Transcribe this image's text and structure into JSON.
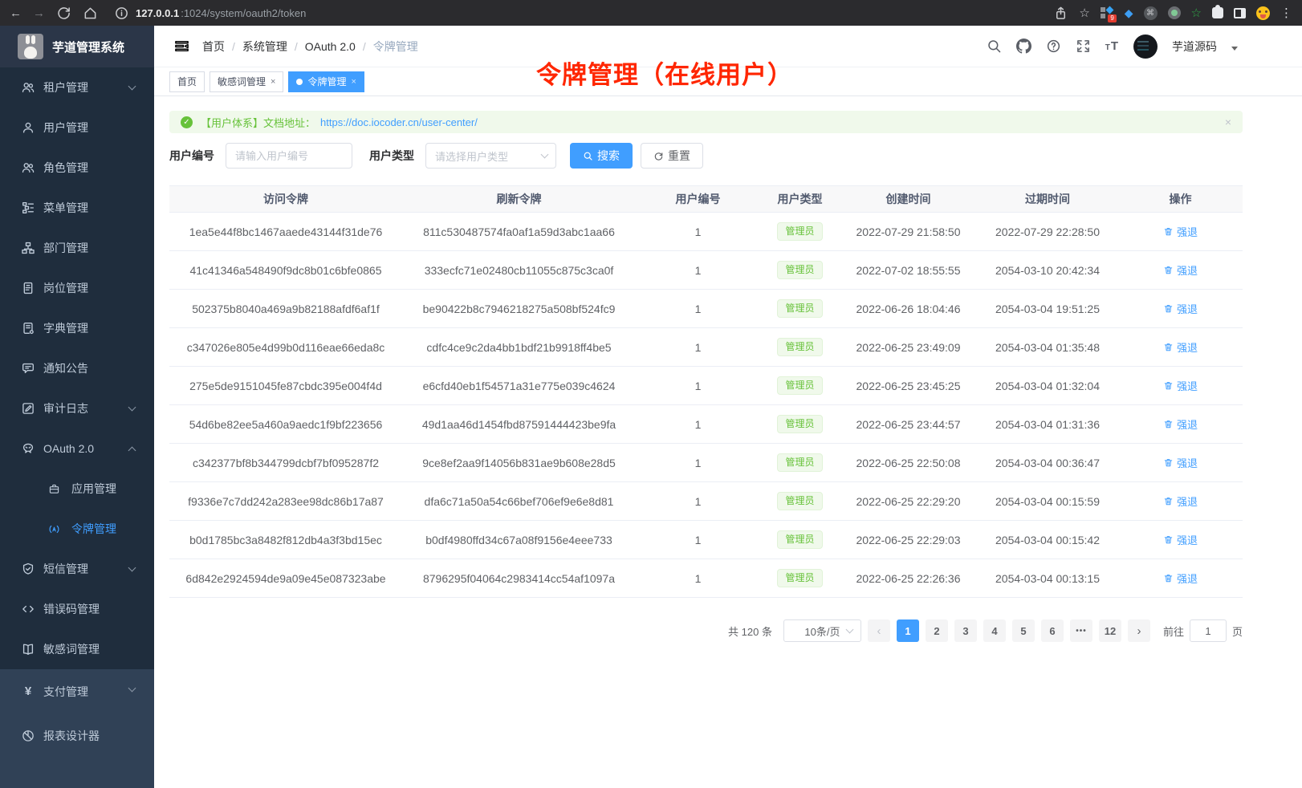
{
  "colors": {
    "accent": "#409eff",
    "success": "#67c23a",
    "sidebar_bg": "#304156",
    "submenu_bg": "#1f2d3d",
    "annotation_red": "#ff2600"
  },
  "browser": {
    "url_host": "127.0.0.1",
    "url_rest": ":1024/system/oauth2/token",
    "extensions_badge": "9"
  },
  "app": {
    "logo_title": "芋道管理系统",
    "annotation_text": "令牌管理（在线用户）"
  },
  "header": {
    "breadcrumb": [
      "首页",
      "系统管理",
      "OAuth 2.0",
      "令牌管理"
    ],
    "user_name": "芋道源码"
  },
  "tabs": [
    {
      "label": "首页",
      "closable": false,
      "active": false
    },
    {
      "label": "敏感词管理",
      "closable": true,
      "active": false
    },
    {
      "label": "令牌管理",
      "closable": true,
      "active": true
    }
  ],
  "sidebar": {
    "submenu_items": [
      {
        "label": "租户管理",
        "icon": "users",
        "level": 1,
        "chevron": "down"
      },
      {
        "label": "用户管理",
        "icon": "user",
        "level": 1
      },
      {
        "label": "角色管理",
        "icon": "users",
        "level": 1
      },
      {
        "label": "菜单管理",
        "icon": "tree",
        "level": 1
      },
      {
        "label": "部门管理",
        "icon": "org",
        "level": 1
      },
      {
        "label": "岗位管理",
        "icon": "badge",
        "level": 1
      },
      {
        "label": "字典管理",
        "icon": "dict",
        "level": 1
      },
      {
        "label": "通知公告",
        "icon": "message",
        "level": 1
      },
      {
        "label": "审计日志",
        "icon": "log",
        "level": 1,
        "chevron": "down"
      },
      {
        "label": "OAuth 2.0",
        "icon": "oauth",
        "level": 1,
        "chevron": "up"
      },
      {
        "label": "应用管理",
        "icon": "app",
        "level": 2
      },
      {
        "label": "令牌管理",
        "icon": "token",
        "level": 2,
        "active": true
      },
      {
        "label": "短信管理",
        "icon": "sms",
        "level": 1,
        "chevron": "down"
      },
      {
        "label": "错误码管理",
        "icon": "code",
        "level": 1
      },
      {
        "label": "敏感词管理",
        "icon": "book",
        "level": 1
      }
    ],
    "root_items": [
      {
        "label": "支付管理",
        "icon": "pay",
        "level": 1,
        "chevron": "down"
      },
      {
        "label": "报表设计器",
        "icon": "report",
        "level": 1
      }
    ]
  },
  "alert": {
    "text": "【用户体系】文档地址：",
    "link": "https://doc.iocoder.cn/user-center/"
  },
  "filters": {
    "user_id_label": "用户编号",
    "user_id_placeholder": "请输入用户编号",
    "user_type_label": "用户类型",
    "user_type_placeholder": "请选择用户类型",
    "search_label": "搜索",
    "reset_label": "重置"
  },
  "table": {
    "columns": [
      "访问令牌",
      "刷新令牌",
      "用户编号",
      "用户类型",
      "创建时间",
      "过期时间",
      "操作"
    ],
    "action_label": "强退",
    "rows": [
      {
        "access": "1ea5e44f8bc1467aaede43144f31de76",
        "refresh": "811c530487574fa0af1a59d3abc1aa66",
        "user_id": "1",
        "user_type": "管理员",
        "created": "2022-07-29 21:58:50",
        "expires": "2022-07-29 22:28:50"
      },
      {
        "access": "41c41346a548490f9dc8b01c6bfe0865",
        "refresh": "333ecfc71e02480cb11055c875c3ca0f",
        "user_id": "1",
        "user_type": "管理员",
        "created": "2022-07-02 18:55:55",
        "expires": "2054-03-10 20:42:34"
      },
      {
        "access": "502375b8040a469a9b82188afdf6af1f",
        "refresh": "be90422b8c7946218275a508bf524fc9",
        "user_id": "1",
        "user_type": "管理员",
        "created": "2022-06-26 18:04:46",
        "expires": "2054-03-04 19:51:25"
      },
      {
        "access": "c347026e805e4d99b0d116eae66eda8c",
        "refresh": "cdfc4ce9c2da4bb1bdf21b9918ff4be5",
        "user_id": "1",
        "user_type": "管理员",
        "created": "2022-06-25 23:49:09",
        "expires": "2054-03-04 01:35:48"
      },
      {
        "access": "275e5de9151045fe87cbdc395e004f4d",
        "refresh": "e6cfd40eb1f54571a31e775e039c4624",
        "user_id": "1",
        "user_type": "管理员",
        "created": "2022-06-25 23:45:25",
        "expires": "2054-03-04 01:32:04"
      },
      {
        "access": "54d6be82ee5a460a9aedc1f9bf223656",
        "refresh": "49d1aa46d1454fbd87591444423be9fa",
        "user_id": "1",
        "user_type": "管理员",
        "created": "2022-06-25 23:44:57",
        "expires": "2054-03-04 01:31:36"
      },
      {
        "access": "c342377bf8b344799dcbf7bf095287f2",
        "refresh": "9ce8ef2aa9f14056b831ae9b608e28d5",
        "user_id": "1",
        "user_type": "管理员",
        "created": "2022-06-25 22:50:08",
        "expires": "2054-03-04 00:36:47"
      },
      {
        "access": "f9336e7c7dd242a283ee98dc86b17a87",
        "refresh": "dfa6c71a50a54c66bef706ef9e6e8d81",
        "user_id": "1",
        "user_type": "管理员",
        "created": "2022-06-25 22:29:20",
        "expires": "2054-03-04 00:15:59"
      },
      {
        "access": "b0d1785bc3a8482f812db4a3f3bd15ec",
        "refresh": "b0df4980ffd34c67a08f9156e4eee733",
        "user_id": "1",
        "user_type": "管理员",
        "created": "2022-06-25 22:29:03",
        "expires": "2054-03-04 00:15:42"
      },
      {
        "access": "6d842e2924594de9a09e45e087323abe",
        "refresh": "8796295f04064c2983414cc54af1097a",
        "user_id": "1",
        "user_type": "管理员",
        "created": "2022-06-25 22:26:36",
        "expires": "2054-03-04 00:13:15"
      }
    ]
  },
  "pagination": {
    "total": "共 120 条",
    "page_size": "10条/页",
    "pages": [
      "1",
      "2",
      "3",
      "4",
      "5",
      "6",
      "•••",
      "12"
    ],
    "active_page": "1",
    "goto_label": "前往",
    "goto_value": "1",
    "goto_suffix": "页"
  }
}
